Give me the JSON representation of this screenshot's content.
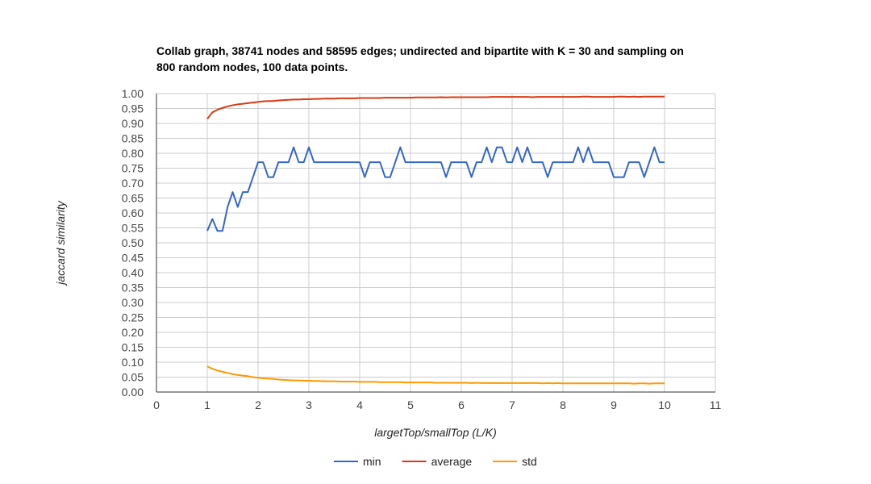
{
  "chart_data": {
    "type": "line",
    "title_line1": "Collab graph, 38741 nodes and 58595 edges; undirected and bipartite with K = 30 and sampling on",
    "title_line2": "800 random nodes, 100 data points.",
    "xlabel": "largetTop/smallTop (L/K)",
    "ylabel": "jaccard similarity",
    "xlim": [
      0,
      11
    ],
    "ylim": [
      0,
      1
    ],
    "x_ticks": [
      "0",
      "1",
      "2",
      "3",
      "4",
      "5",
      "6",
      "7",
      "8",
      "9",
      "10",
      "11"
    ],
    "y_ticks": [
      "0.00",
      "0.05",
      "0.10",
      "0.15",
      "0.20",
      "0.25",
      "0.30",
      "0.35",
      "0.40",
      "0.45",
      "0.50",
      "0.55",
      "0.60",
      "0.65",
      "0.70",
      "0.75",
      "0.80",
      "0.85",
      "0.90",
      "0.95",
      "1.00"
    ],
    "grid": true,
    "legend_position": "bottom",
    "x": [
      1.0,
      1.1,
      1.2,
      1.3,
      1.4,
      1.5,
      1.6,
      1.7,
      1.8,
      1.9,
      2.0,
      2.1,
      2.2,
      2.3,
      2.4,
      2.5,
      2.6,
      2.7,
      2.8,
      2.9,
      3.0,
      3.1,
      3.2,
      3.3,
      3.4,
      3.5,
      3.6,
      3.7,
      3.8,
      3.9,
      4.0,
      4.1,
      4.2,
      4.3,
      4.4,
      4.5,
      4.6,
      4.7,
      4.8,
      4.9,
      5.0,
      5.1,
      5.2,
      5.3,
      5.4,
      5.5,
      5.6,
      5.7,
      5.8,
      5.9,
      6.0,
      6.1,
      6.2,
      6.3,
      6.4,
      6.5,
      6.6,
      6.7,
      6.8,
      6.9,
      7.0,
      7.1,
      7.2,
      7.3,
      7.4,
      7.5,
      7.6,
      7.7,
      7.8,
      7.9,
      8.0,
      8.1,
      8.2,
      8.3,
      8.4,
      8.5,
      8.6,
      8.7,
      8.8,
      8.9,
      9.0,
      9.1,
      9.2,
      9.3,
      9.4,
      9.5,
      9.6,
      9.7,
      9.8,
      9.9,
      10.0
    ],
    "series": [
      {
        "name": "min",
        "color": "#3366cc",
        "values": [
          0.54,
          0.58,
          0.54,
          0.54,
          0.62,
          0.67,
          0.62,
          0.67,
          0.67,
          0.72,
          0.77,
          0.77,
          0.72,
          0.72,
          0.77,
          0.77,
          0.77,
          0.82,
          0.77,
          0.77,
          0.82,
          0.77,
          0.77,
          0.77,
          0.77,
          0.77,
          0.77,
          0.77,
          0.77,
          0.77,
          0.77,
          0.72,
          0.77,
          0.77,
          0.77,
          0.72,
          0.72,
          0.77,
          0.82,
          0.77,
          0.77,
          0.77,
          0.77,
          0.77,
          0.77,
          0.77,
          0.77,
          0.72,
          0.77,
          0.77,
          0.77,
          0.77,
          0.72,
          0.77,
          0.77,
          0.82,
          0.77,
          0.82,
          0.82,
          0.77,
          0.77,
          0.82,
          0.77,
          0.82,
          0.77,
          0.77,
          0.77,
          0.72,
          0.77,
          0.77,
          0.77,
          0.77,
          0.77,
          0.82,
          0.77,
          0.82,
          0.77,
          0.77,
          0.77,
          0.77,
          0.72,
          0.72,
          0.72,
          0.77,
          0.77,
          0.77,
          0.72,
          0.77,
          0.82,
          0.77,
          0.77
        ]
      },
      {
        "name": "average",
        "color": "#dc3912",
        "values": [
          0.915,
          0.937,
          0.946,
          0.952,
          0.957,
          0.961,
          0.964,
          0.966,
          0.968,
          0.97,
          0.972,
          0.974,
          0.975,
          0.975,
          0.977,
          0.978,
          0.979,
          0.98,
          0.98,
          0.981,
          0.981,
          0.982,
          0.982,
          0.983,
          0.983,
          0.983,
          0.984,
          0.984,
          0.984,
          0.984,
          0.985,
          0.985,
          0.985,
          0.985,
          0.985,
          0.986,
          0.986,
          0.986,
          0.986,
          0.986,
          0.986,
          0.987,
          0.987,
          0.987,
          0.987,
          0.987,
          0.988,
          0.987,
          0.988,
          0.988,
          0.988,
          0.988,
          0.988,
          0.988,
          0.988,
          0.988,
          0.989,
          0.989,
          0.989,
          0.989,
          0.989,
          0.989,
          0.989,
          0.989,
          0.988,
          0.989,
          0.989,
          0.989,
          0.989,
          0.989,
          0.989,
          0.989,
          0.989,
          0.989,
          0.99,
          0.99,
          0.989,
          0.989,
          0.989,
          0.989,
          0.989,
          0.99,
          0.99,
          0.989,
          0.99,
          0.989,
          0.99,
          0.99,
          0.99,
          0.99,
          0.99
        ]
      },
      {
        "name": "std",
        "color": "#ff9900",
        "values": [
          0.086,
          0.078,
          0.072,
          0.068,
          0.064,
          0.06,
          0.057,
          0.055,
          0.053,
          0.05,
          0.048,
          0.046,
          0.045,
          0.044,
          0.042,
          0.041,
          0.04,
          0.039,
          0.039,
          0.038,
          0.038,
          0.037,
          0.037,
          0.036,
          0.036,
          0.036,
          0.035,
          0.035,
          0.035,
          0.035,
          0.034,
          0.034,
          0.034,
          0.034,
          0.033,
          0.033,
          0.033,
          0.033,
          0.033,
          0.032,
          0.032,
          0.032,
          0.032,
          0.032,
          0.032,
          0.031,
          0.031,
          0.031,
          0.031,
          0.031,
          0.031,
          0.031,
          0.03,
          0.031,
          0.03,
          0.03,
          0.03,
          0.03,
          0.03,
          0.03,
          0.03,
          0.03,
          0.03,
          0.03,
          0.03,
          0.03,
          0.029,
          0.03,
          0.029,
          0.03,
          0.029,
          0.029,
          0.029,
          0.029,
          0.029,
          0.029,
          0.029,
          0.029,
          0.029,
          0.029,
          0.029,
          0.029,
          0.029,
          0.029,
          0.028,
          0.029,
          0.029,
          0.028,
          0.029,
          0.029,
          0.029
        ]
      }
    ]
  }
}
